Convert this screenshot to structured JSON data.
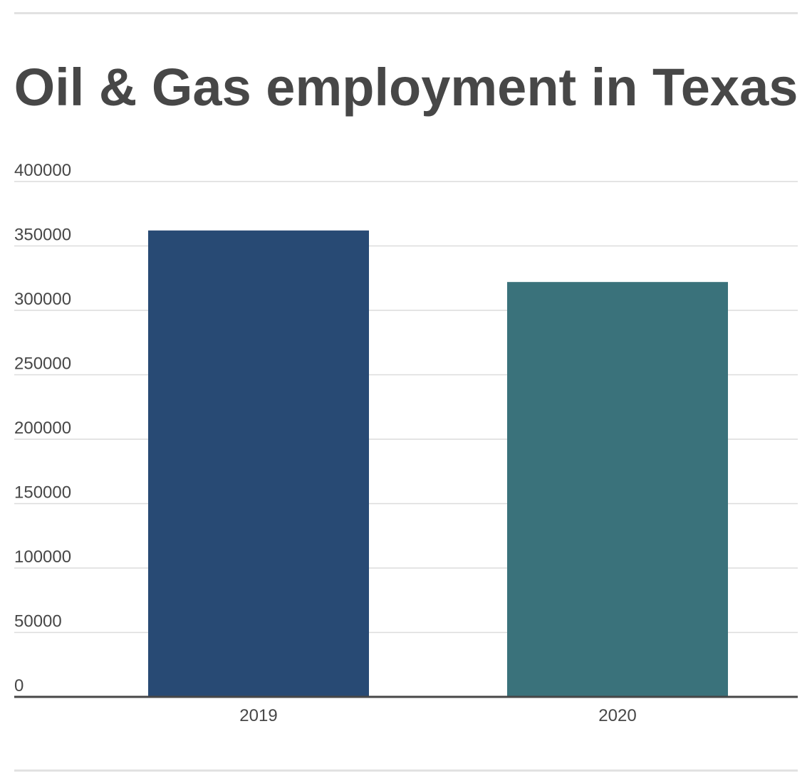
{
  "chart_data": {
    "type": "bar",
    "title": "Oil & Gas employment in Texas",
    "categories": [
      "2019",
      "2020"
    ],
    "values": [
      362000,
      322000
    ],
    "colors": [
      "#284a74",
      "#3a727b"
    ],
    "ylim": [
      0,
      400000
    ],
    "yticks": [
      "0",
      "50000",
      "100000",
      "150000",
      "200000",
      "250000",
      "300000",
      "350000",
      "400000"
    ],
    "grid": true
  }
}
